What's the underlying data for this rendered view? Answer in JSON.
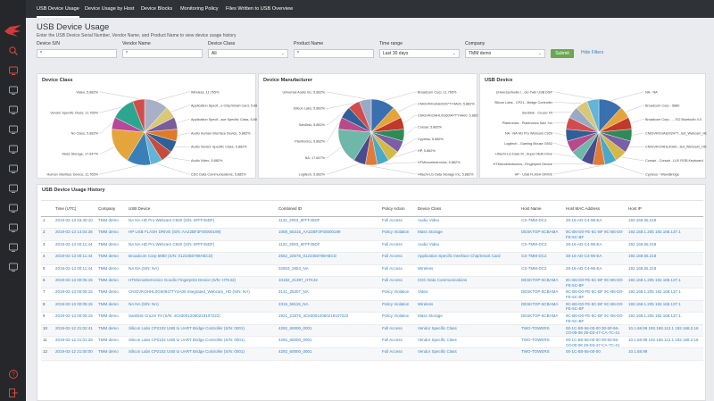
{
  "nav": {
    "items": [
      {
        "label": "USB Device Usage",
        "active": true
      },
      {
        "label": "Device Usage by Host",
        "active": false
      },
      {
        "label": "Device Blocks",
        "active": false
      },
      {
        "label": "Monitoring Policy",
        "active": false
      },
      {
        "label": "Files Written to USB Overview",
        "active": false
      }
    ]
  },
  "sidebar": {
    "icons": [
      "search-icon",
      "radar-icon",
      "monitor-icon",
      "tablet-icon",
      "sliders-icon",
      "sliders-icon",
      "grid-icon",
      "network-icon",
      "gear-icon",
      "user-icon",
      "globe-icon",
      "shield-icon",
      "help-icon",
      "logout-icon"
    ]
  },
  "page": {
    "title": "USB Device Usage",
    "subtitle": "Enter the USB Device Serial Number, Vendor Name, and Product Name to view device usage history"
  },
  "filters": {
    "device_sn": {
      "label": "Device S/N",
      "value": "*"
    },
    "vendor_name": {
      "label": "Vendor Name",
      "value": "*"
    },
    "device_class": {
      "label": "Device Class",
      "value": "All"
    },
    "product_name": {
      "label": "Product Name",
      "value": "*"
    },
    "time_range": {
      "label": "Time range",
      "value": "Last 30 days"
    },
    "company": {
      "label": "Company",
      "value": "TMM demo"
    },
    "submit_label": "Submit",
    "hide_filters_label": "Hide Filters"
  },
  "chart_data": [
    {
      "type": "pie",
      "title": "Device Class",
      "slices": [
        {
          "label": "Wireless, 11.765%",
          "value": 11.765,
          "color": "#a8b0c7"
        },
        {
          "label": "Application Specif...e Chip/Smart Card, 5.882%",
          "value": 5.882,
          "color": "#d9c878"
        },
        {
          "label": "Application Specif...ace Specific Class, 5.882%",
          "value": 5.882,
          "color": "#7a5c9e"
        },
        {
          "label": "Audio Human Interface Device, 5.882%",
          "value": 5.882,
          "color": "#e07a26"
        },
        {
          "label": "Audio Vendor Specific Class, 5.882%",
          "value": 5.882,
          "color": "#2f5f98"
        },
        {
          "label": "Audio Video, 5.882%",
          "value": 5.882,
          "color": "#c84b3c"
        },
        {
          "label": "CDC Data Communications, 5.882%",
          "value": 5.882,
          "color": "#62b4d8"
        },
        {
          "label": "Human Interface Device, 11.765%",
          "value": 11.765,
          "color": "#3b7fb8"
        },
        {
          "label": "Mass Storage, 17.647%",
          "value": 17.647,
          "color": "#e4a53c"
        },
        {
          "label": "No Class, 5.882%",
          "value": 5.882,
          "color": "#b8479a"
        },
        {
          "label": "Vendor Specific Class, 11.765%",
          "value": 11.765,
          "color": "#2da68f"
        },
        {
          "label": "Video, 5.882%",
          "value": 5.882,
          "color": "#d34c4c"
        }
      ]
    },
    {
      "type": "pie",
      "title": "Device Manufacturer",
      "slices": [
        {
          "label": "Broadcom Corp, 11.765%",
          "value": 11.765,
          "color": "#3a6fb0"
        },
        {
          "label": "CNIGVKKGA8J0247TY4A00, 5.882%",
          "value": 5.882,
          "color": "#e6a33a"
        },
        {
          "label": "CNIGVKIOHHL0G60947TY4A00, 5.882%",
          "value": 5.882,
          "color": "#c0392b"
        },
        {
          "label": "Corsair, 5.882%",
          "value": 5.882,
          "color": "#2e8b57"
        },
        {
          "label": "Cypress, 5.882%",
          "value": 5.882,
          "color": "#7b5ea7"
        },
        {
          "label": "HP, 5.882%",
          "value": 5.882,
          "color": "#d4b84a"
        },
        {
          "label": "HTMicroelectronics, 5.882%",
          "value": 5.882,
          "color": "#4aa8c8"
        },
        {
          "label": "Hitachi-LG Data Storage Inc, 5.882%",
          "value": 5.882,
          "color": "#e07b39"
        },
        {
          "label": "Logitech, 5.882%",
          "value": 5.882,
          "color": "#4b4b8f"
        },
        {
          "label": "NA, 17.647%",
          "value": 17.647,
          "color": "#6fb7a8"
        },
        {
          "label": "Plantronics, 5.882%",
          "value": 5.882,
          "color": "#b84a8a"
        },
        {
          "label": "SanDisk, 5.882%",
          "value": 5.882,
          "color": "#2f5f98"
        },
        {
          "label": "Silicon Labs, 5.882%",
          "value": 5.882,
          "color": "#d34c4c"
        },
        {
          "label": "Universal Audio Inc, 5.882%",
          "value": 5.882,
          "color": "#9aaac4"
        }
      ]
    },
    {
      "type": "pie",
      "title": "USB Device",
      "slices": [
        {
          "label": "NA - NA",
          "value": 11.765,
          "color": "#3a6fb0"
        },
        {
          "label": "Broadcom Corp - 5880",
          "value": 5.882,
          "color": "#e6a33a"
        },
        {
          "label": "Broadcom Corp - ...702 Bluetooth 4.0",
          "value": 5.882,
          "color": "#c0392b"
        },
        {
          "label": "CNIGVKKGA8J0247T...ted_Webcam_HD",
          "value": 5.882,
          "color": "#2e8b57"
        },
        {
          "label": "CNIGVKIOHHL0G60...ted_Webcam_HD",
          "value": 5.882,
          "color": "#7b5ea7"
        },
        {
          "label": "Corsair - Corsair...LUX RGB Keyboard",
          "value": 5.882,
          "color": "#d4b84a"
        },
        {
          "label": "Cypress - WaveBridge",
          "value": 5.882,
          "color": "#4aa8c8"
        },
        {
          "label": "HP - USB FLASH DRIVE",
          "value": 5.882,
          "color": "#e07b39"
        },
        {
          "label": "HTMicroelectronics...Fingerprint Device",
          "value": 5.882,
          "color": "#4b4b8f"
        },
        {
          "label": "Hitachi-LG Data St...Super Multi Drive",
          "value": 5.882,
          "color": "#6fb7a8"
        },
        {
          "label": "Logitech - Gaming Mouse G502",
          "value": 5.882,
          "color": "#b84a8a"
        },
        {
          "label": "NA - NA HD Pro Webcam C920",
          "value": 5.882,
          "color": "#2f5f98"
        },
        {
          "label": "Plantronics - Plantronics Savi 7xx",
          "value": 5.882,
          "color": "#d34c4c"
        },
        {
          "label": "SanDisk - Cruzer Fit",
          "value": 5.882,
          "color": "#9aaac4"
        },
        {
          "label": "Silicon Labs - CP21...Bridge Controller",
          "value": 5.882,
          "color": "#d9c878"
        },
        {
          "label": "Universal Audio I...olo Twin USB DSP",
          "value": 5.882,
          "color": "#62b4d8"
        }
      ]
    }
  ],
  "history": {
    "title": "USB Device Usage History",
    "columns": [
      "",
      "Time (UTC)",
      "Company",
      "USB Device",
      "Combined ID",
      "Policy Action",
      "Device Class",
      "Host Name",
      "Host MAC Address",
      "Host IP"
    ],
    "rows": [
      [
        "1",
        "2019-02-13 15:40:10",
        "TMM demo",
        "NA NA HD Pro Webcam C920 (S/N: 6FFF45DF)",
        "1133_2093_6FFF45DF",
        "Full Access",
        "Audio Video",
        "CS-TMM-DC2",
        "28-16-AD-C4-96-EA",
        "192.168.55.218"
      ],
      [
        "2",
        "2019-02-13 14:04:36",
        "TMM demo",
        "HP USB FLASH DRIVE (S/N: AA22BF3F00000199)",
        "1008_65316_AA22BF3F00000199",
        "Policy Violation",
        "Mass Storage",
        "DESKTOP-5CBAMA",
        "9C-B6-D0-FE-5C-BF 9C-B6-D0-FE-5C-BF",
        "192.168.1.205 192.168.137.1"
      ],
      [
        "3",
        "2019-02-13 00:11:44",
        "TMM demo",
        "NA NA HD Pro Webcam C920 (S/N: 6FFF45DF)",
        "1133_2093_6FFF45DF",
        "Full Access",
        "Audio Video",
        "CS-TMM-DC2",
        "28-16-AD-C4-96-EA",
        "192.168.55.218"
      ],
      [
        "4",
        "2019-02-13 00:11:44",
        "TMM demo",
        "Broadcom Corp 5880 (S/N: 0123456789ABCD)",
        "2652_22576_0123456789ABCD",
        "Full Access",
        "Application Specific Interface Chip/Smart Card",
        "CS-TMM-DC2",
        "28-16-AD-C4-96-EA",
        "192.168.55.218"
      ],
      [
        "5",
        "2019-02-13 00:11:44",
        "TMM demo",
        "NA NA (S/N: NA)",
        "32903_2653_NA",
        "Full Access",
        "Wireless",
        "CS-TMM-DC2",
        "28-16-AD-C4-96-EA",
        "192.168.55.218"
      ],
      [
        "6",
        "2019-02-13 00:05:15",
        "TMM demo",
        "HTMicroelectronics Goodix Fingerprint Device (S/N: HTK32)",
        "10182_21397_HTK32",
        "Full Access",
        "CDC Data Communications",
        "DESKTOP-5CBAMA",
        "9C-B6-D0-FE-5C-BF 9C-B6-D0-FE-5C-BF",
        "192.168.1.205 192.168.137.1"
      ],
      [
        "7",
        "2019-02-13 00:05:15",
        "TMM demo",
        "CNIGVKOHHL0G60947TY4A00 Integrated_Webcam_HD (S/N: NA)",
        "3141_25307_NA",
        "Policy Violation",
        "Video",
        "DESKTOP-5CBAMA",
        "9C-B6-D0-FE-5C-BF 9C-B6-D0-FE-5C-BF",
        "192.168.1.205 192.168.137.1"
      ],
      [
        "8",
        "2019-02-13 00:05:15",
        "TMM demo",
        "NA NA (S/N: NA)",
        "2315_58115_NA",
        "Policy Violation",
        "Wireless",
        "DESKTOP-5CBAMA",
        "9C-B6-D0-FE-5C-BF 9C-B6-D0-FE-5C-BF",
        "192.168.1.205 192.168.137.1"
      ],
      [
        "9",
        "2019-02-13 00:05:15",
        "TMM demo",
        "SanDisk Cruzer Fit (S/N: 4C530012060219107222)",
        "1921_21875_4C530012060219107222",
        "Policy Violation",
        "Mass Storage",
        "DESKTOP-5CBAMA",
        "9C-B6-D0-FE-5C-BF 9C-B6-D0-FE-5C-BF",
        "192.168.1.205 192.168.137.1"
      ],
      [
        "10",
        "2019-02-12 21:02:41",
        "TMM demo",
        "Silicon Labs CP2102 USB to UART Bridge Controller (S/N: 0001)",
        "4292_60000_0001",
        "Full Access",
        "Vendor Specific Class",
        "TWO-TOWERS",
        "00-1C-B0-56-00-00 00-50-56-C0-00-08 28-D3-47-CA-7C-41",
        "10.1.68.99 192.168.112.1 192.168.2.16"
      ],
      [
        "11",
        "2019-02-12 21:01:28",
        "TMM demo",
        "Silicon Labs CP2102 USB to UART Bridge Controller (S/N: 0001)",
        "4292_60000_0001",
        "Full Access",
        "Vendor Specific Class",
        "TWO-TOWERS",
        "00-1C-B0-56-00-00 00-50-56-C0-00-08 28-D3-47-CA-7C-41",
        "10.1.68.99 192.168.112.1 192.168.2.16"
      ],
      [
        "12",
        "2019-02-12 21:00:00",
        "TMM demo",
        "Silicon Labs CP2102 USB to UART Bridge Controller (S/N: 0001)",
        "4292_60000_0001",
        "Full Access",
        "Vendor Specific Class",
        "TWO-TOWERS",
        "00-1C-B0-56-00-00",
        "10.1.68.99"
      ]
    ]
  }
}
